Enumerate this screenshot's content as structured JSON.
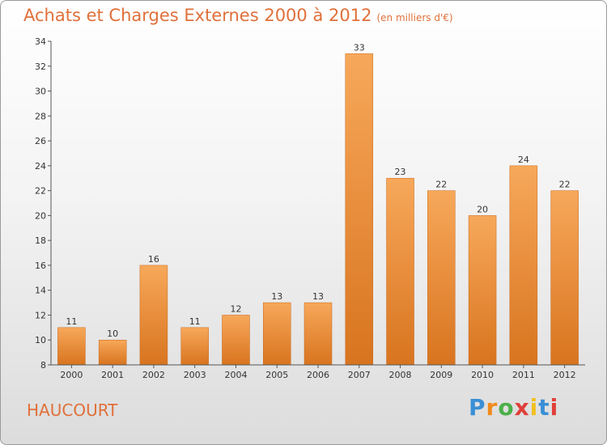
{
  "title": "Achats et Charges Externes 2000 à 2012",
  "subtitle": "(en milliers d'€)",
  "commune": "HAUCOURT",
  "logo": [
    "P",
    "r",
    "o",
    "x",
    "i",
    "t",
    "i"
  ],
  "colors": {
    "title": "#e0703a",
    "bar_top": "#f7a85a",
    "bar_bottom": "#d8741f",
    "logo": [
      "#3a8fd6",
      "#f08a1c",
      "#4ab04a",
      "#e0403a",
      "#f0c020",
      "#3a8fd6",
      "#e0403a"
    ]
  },
  "chart_data": {
    "type": "bar",
    "categories": [
      "2000",
      "2001",
      "2002",
      "2003",
      "2004",
      "2005",
      "2006",
      "2007",
      "2008",
      "2009",
      "2010",
      "2011",
      "2012"
    ],
    "values": [
      11,
      10,
      16,
      11,
      12,
      13,
      13,
      33,
      23,
      22,
      20,
      24,
      22
    ],
    "ylim": [
      8,
      34
    ],
    "yticks": [
      8,
      10,
      12,
      14,
      16,
      18,
      20,
      22,
      24,
      26,
      28,
      30,
      32,
      34
    ],
    "grid": false,
    "legend": "none"
  }
}
